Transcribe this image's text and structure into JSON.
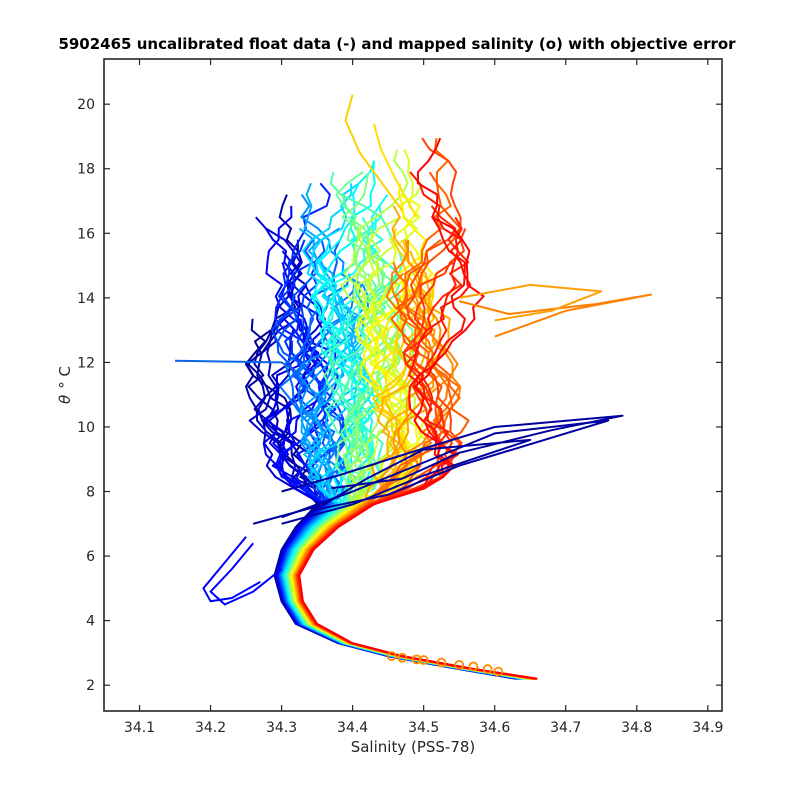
{
  "chart_data": {
    "type": "line",
    "title": "5902465 uncalibrated float data (-) and mapped salinity (o) with objective error",
    "xlabel": "Salinity (PSS-78)",
    "ylabel_symbol": "θ",
    "ylabel_unit": "° C",
    "xlim": [
      34.05,
      34.92
    ],
    "ylim": [
      1.2,
      21.4
    ],
    "x_ticks": [
      "34.1",
      "34.2",
      "34.3",
      "34.4",
      "34.5",
      "34.6",
      "34.7",
      "34.8",
      "34.9"
    ],
    "x_tick_values": [
      34.1,
      34.2,
      34.3,
      34.4,
      34.5,
      34.6,
      34.7,
      34.8,
      34.9
    ],
    "y_ticks": [
      "2",
      "4",
      "6",
      "8",
      "10",
      "12",
      "14",
      "16",
      "18",
      "20"
    ],
    "y_tick_values": [
      2,
      4,
      6,
      8,
      10,
      12,
      14,
      16,
      18,
      20
    ],
    "grid": false,
    "legend": "none",
    "colormap": [
      "#00008f",
      "#0000ff",
      "#0080ff",
      "#00ffff",
      "#80ff80",
      "#ffff00",
      "#ff8000",
      "#ff0000"
    ],
    "profile_count": 90,
    "mapped_salinity_marker_color": "#ff8c00",
    "mapped_salinity_points": [
      {
        "x": 34.455,
        "y": 2.9
      },
      {
        "x": 34.47,
        "y": 2.85
      },
      {
        "x": 34.49,
        "y": 2.8
      },
      {
        "x": 34.5,
        "y": 2.78
      },
      {
        "x": 34.525,
        "y": 2.7
      },
      {
        "x": 34.55,
        "y": 2.63
      },
      {
        "x": 34.57,
        "y": 2.58
      },
      {
        "x": 34.59,
        "y": 2.5
      },
      {
        "x": 34.605,
        "y": 2.42
      }
    ],
    "outlier_profiles": [
      {
        "color": "#0a64e6",
        "points": [
          [
            34.15,
            12.05
          ],
          [
            34.3,
            12.0
          ],
          [
            34.33,
            11.6
          ]
        ]
      },
      {
        "color": "#0000a0",
        "points": [
          [
            34.37,
            8.1
          ],
          [
            34.47,
            8.4
          ],
          [
            34.55,
            9.2
          ],
          [
            34.68,
            9.9
          ],
          [
            34.78,
            10.35
          ],
          [
            34.6,
            10.0
          ],
          [
            34.48,
            9.2
          ],
          [
            34.38,
            8.5
          ],
          [
            34.3,
            8.0
          ]
        ]
      },
      {
        "color": "#0000a0",
        "points": [
          [
            34.34,
            7.4
          ],
          [
            34.45,
            7.9
          ],
          [
            34.55,
            8.8
          ],
          [
            34.7,
            9.8
          ],
          [
            34.76,
            10.2
          ],
          [
            34.6,
            9.8
          ],
          [
            34.5,
            8.9
          ],
          [
            34.4,
            8.0
          ],
          [
            34.3,
            7.2
          ]
        ]
      },
      {
        "color": "#0000a0",
        "points": [
          [
            34.3,
            7.0
          ],
          [
            34.4,
            7.6
          ],
          [
            34.5,
            8.5
          ],
          [
            34.65,
            9.6
          ],
          [
            34.5,
            9.3
          ],
          [
            34.42,
            8.4
          ],
          [
            34.36,
            7.6
          ],
          [
            34.26,
            7.0
          ]
        ]
      },
      {
        "color": "#0000ff",
        "points": [
          [
            34.25,
            6.6
          ],
          [
            34.22,
            5.8
          ],
          [
            34.19,
            5.0
          ],
          [
            34.2,
            4.6
          ],
          [
            34.23,
            4.7
          ],
          [
            34.27,
            5.2
          ]
        ]
      },
      {
        "color": "#0000ff",
        "points": [
          [
            34.26,
            6.4
          ],
          [
            34.23,
            5.6
          ],
          [
            34.2,
            4.9
          ],
          [
            34.22,
            4.5
          ],
          [
            34.26,
            4.9
          ],
          [
            34.3,
            5.6
          ]
        ]
      },
      {
        "color": "#ff8000",
        "points": [
          [
            34.6,
            12.8
          ],
          [
            34.7,
            13.6
          ],
          [
            34.82,
            14.1
          ],
          [
            34.74,
            13.8
          ],
          [
            34.62,
            13.5
          ],
          [
            34.55,
            13.9
          ]
        ]
      },
      {
        "color": "#ffa000",
        "points": [
          [
            34.55,
            14.0
          ],
          [
            34.65,
            14.4
          ],
          [
            34.75,
            14.2
          ],
          [
            34.68,
            13.6
          ],
          [
            34.6,
            13.3
          ]
        ]
      },
      {
        "color": "#ffd000",
        "points": [
          [
            34.4,
            20.3
          ],
          [
            34.39,
            19.5
          ],
          [
            34.41,
            18.5
          ],
          [
            34.44,
            17.6
          ],
          [
            34.47,
            16.7
          ]
        ]
      },
      {
        "color": "#ffe000",
        "points": [
          [
            34.43,
            19.4
          ],
          [
            34.44,
            18.6
          ],
          [
            34.46,
            17.7
          ],
          [
            34.49,
            16.5
          ]
        ]
      }
    ]
  }
}
